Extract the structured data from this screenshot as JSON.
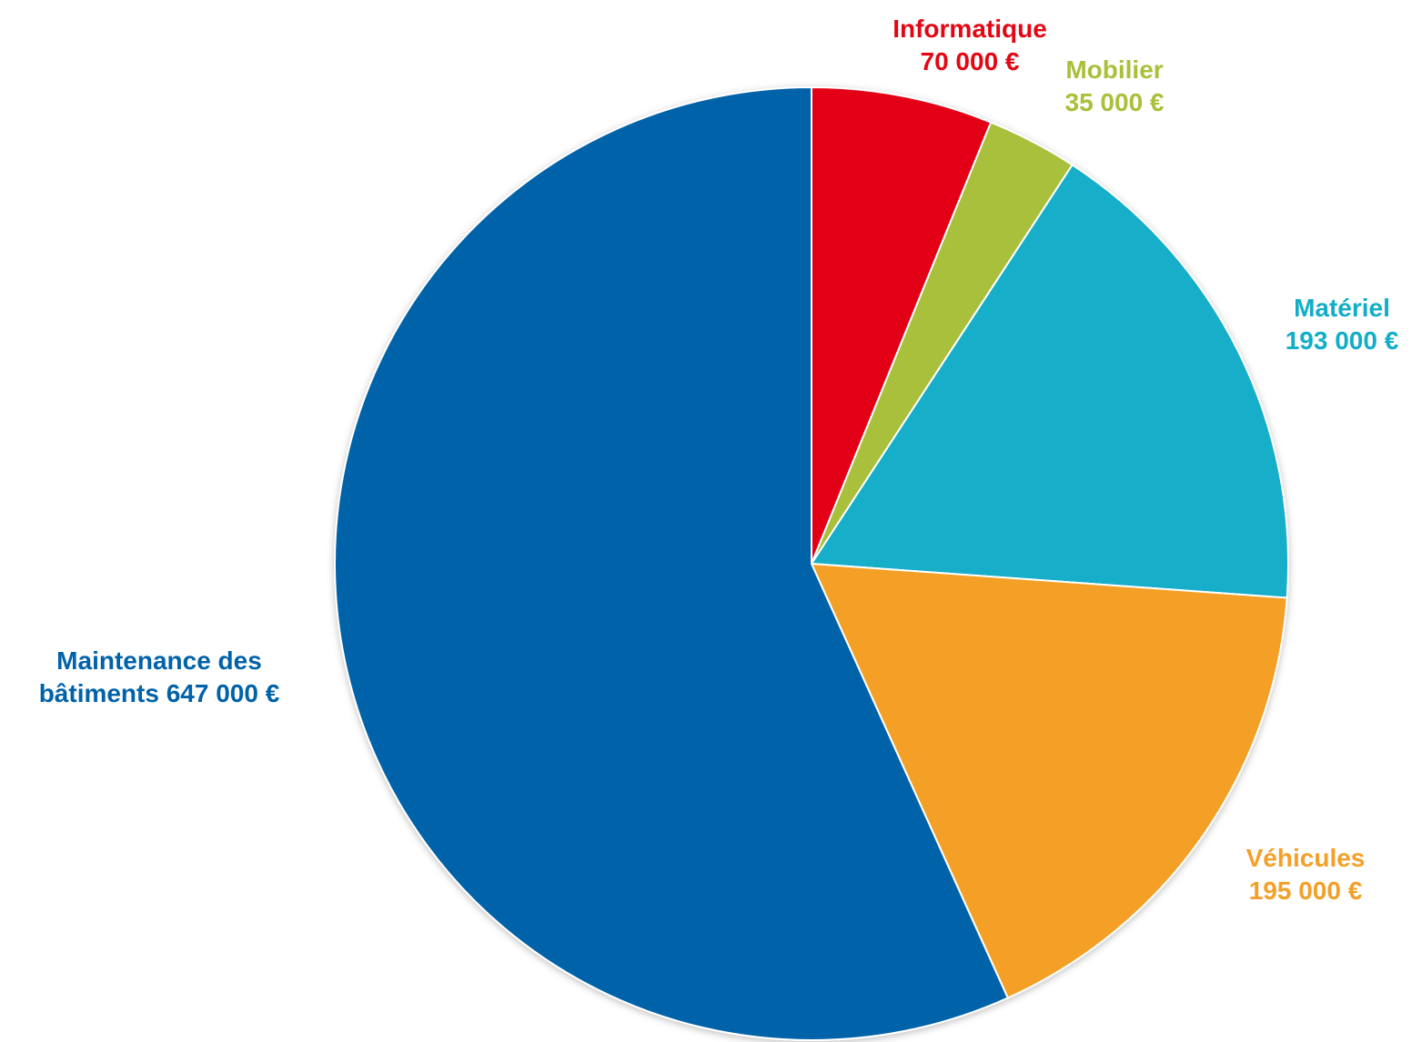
{
  "chart_data": {
    "type": "pie",
    "categories": [
      "Informatique",
      "Mobilier",
      "Matériel",
      "Véhicules",
      "Maintenance des bâtiments"
    ],
    "values": [
      70000,
      35000,
      193000,
      195000,
      647000
    ],
    "value_labels": [
      "70 000 €",
      "35 000 €",
      "193 000 €",
      "195 000 €",
      "647 000 €"
    ],
    "colors": [
      "#e30613",
      "#a8c03a",
      "#12aec8",
      "#f4a028",
      "#0062a8"
    ]
  }
}
